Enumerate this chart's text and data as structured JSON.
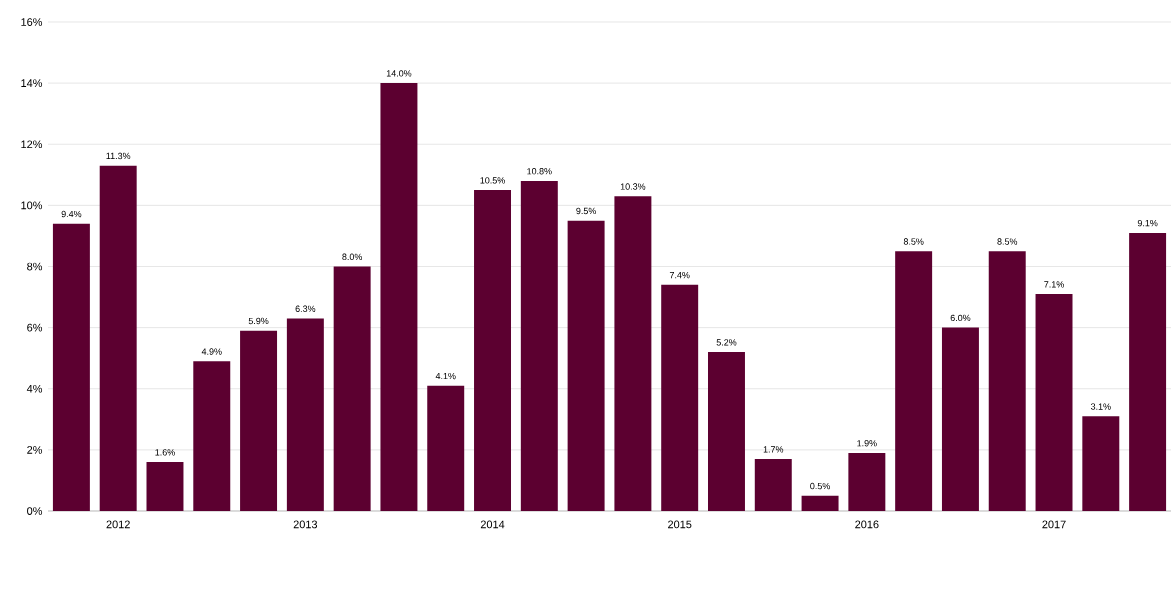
{
  "chart_data": {
    "type": "bar",
    "categories": [
      null,
      "2012",
      null,
      null,
      null,
      "2013",
      null,
      null,
      null,
      "2014",
      null,
      null,
      null,
      "2015",
      null,
      null,
      null,
      "2016",
      null,
      null,
      null,
      "2017",
      null,
      null
    ],
    "values": [
      9.4,
      11.3,
      1.6,
      4.9,
      5.9,
      6.3,
      8.0,
      14.0,
      4.1,
      10.5,
      10.8,
      9.5,
      10.3,
      7.4,
      5.2,
      1.7,
      0.5,
      1.9,
      8.5,
      6.0,
      8.5,
      7.1,
      3.1,
      9.1
    ],
    "value_labels": [
      "9.4%",
      "11.3%",
      "1.6%",
      "4.9%",
      "5.9%",
      "6.3%",
      "8.0%",
      "14.0%",
      "4.1%",
      "10.5%",
      "10.8%",
      "9.5%",
      "10.3%",
      "7.4%",
      "5.2%",
      "1.7%",
      "0.5%",
      "1.9%",
      "8.5%",
      "6.0%",
      "8.5%",
      "7.1%",
      "3.1%",
      "9.1%"
    ],
    "color": "#5c0030",
    "ylim": [
      0,
      16
    ],
    "yticks": [
      {
        "value": 0,
        "label": "0%"
      },
      {
        "value": 2,
        "label": "2%"
      },
      {
        "value": 4,
        "label": "4%"
      },
      {
        "value": 6,
        "label": "6%"
      },
      {
        "value": 8,
        "label": "8%"
      },
      {
        "value": 10,
        "label": "10%"
      },
      {
        "value": 12,
        "label": "12%"
      },
      {
        "value": 14,
        "label": "14%"
      },
      {
        "value": 16,
        "label": "16%"
      }
    ],
    "grid": "y"
  }
}
